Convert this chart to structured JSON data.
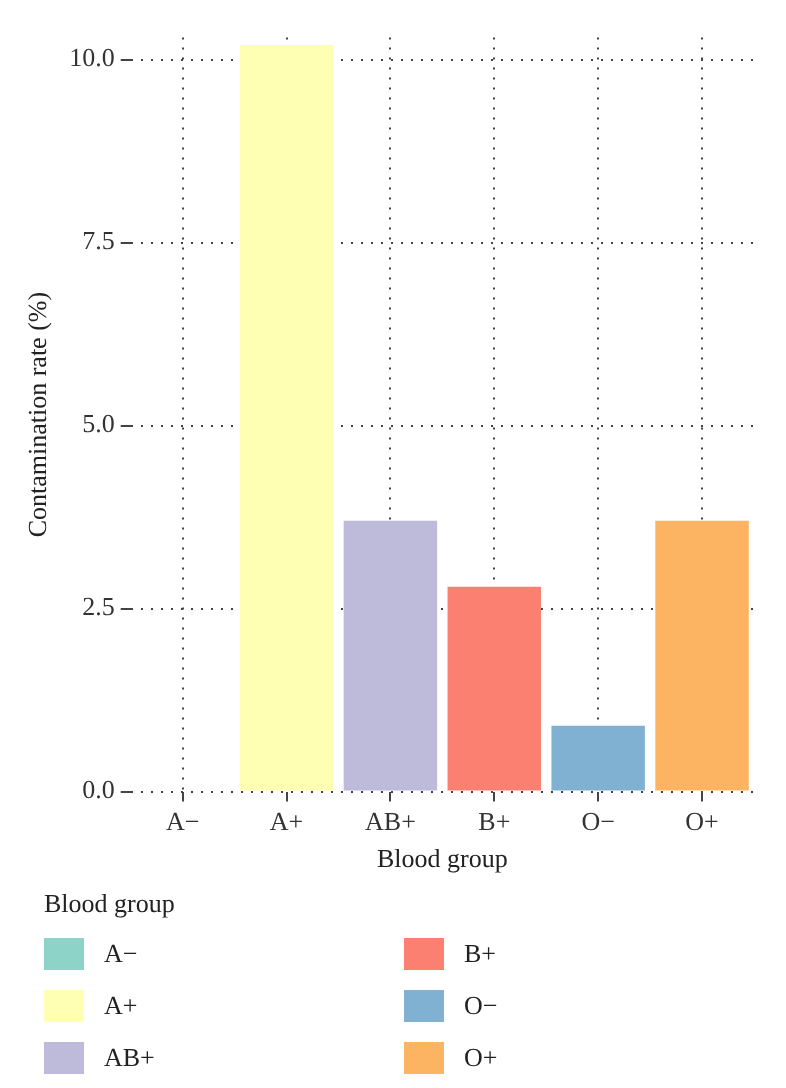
{
  "chart_data": {
    "type": "bar",
    "xlabel": "Blood group",
    "ylabel": "Contamination rate (%)",
    "legend_title": "Blood group",
    "categories": [
      "A−",
      "A+",
      "AB+",
      "B+",
      "O−",
      "O+"
    ],
    "series": [
      {
        "name": "A−",
        "color": "#8dd3c7",
        "values": [
          0,
          null,
          null,
          null,
          null,
          null
        ]
      },
      {
        "name": "A+",
        "color": "#ffffb3",
        "values": [
          null,
          10.2,
          null,
          null,
          null,
          null
        ]
      },
      {
        "name": "AB+",
        "color": "#bebada",
        "values": [
          null,
          null,
          3.7,
          null,
          null,
          null
        ]
      },
      {
        "name": "B+",
        "color": "#fb8072",
        "values": [
          null,
          null,
          null,
          2.8,
          null,
          null
        ]
      },
      {
        "name": "O−",
        "color": "#80b1d3",
        "values": [
          null,
          null,
          null,
          null,
          0.9,
          null
        ]
      },
      {
        "name": "O+",
        "color": "#fdb462",
        "values": [
          null,
          null,
          null,
          null,
          null,
          3.7
        ]
      }
    ],
    "ylim": [
      0,
      10.3
    ],
    "yticks": [
      {
        "value": 0,
        "label": "0.0"
      },
      {
        "value": 2.5,
        "label": "2.5"
      },
      {
        "value": 5,
        "label": "5.0"
      },
      {
        "value": 7.5,
        "label": "7.5"
      },
      {
        "value": 10,
        "label": "10.0"
      }
    ],
    "grid": true,
    "legend": "bottom"
  }
}
